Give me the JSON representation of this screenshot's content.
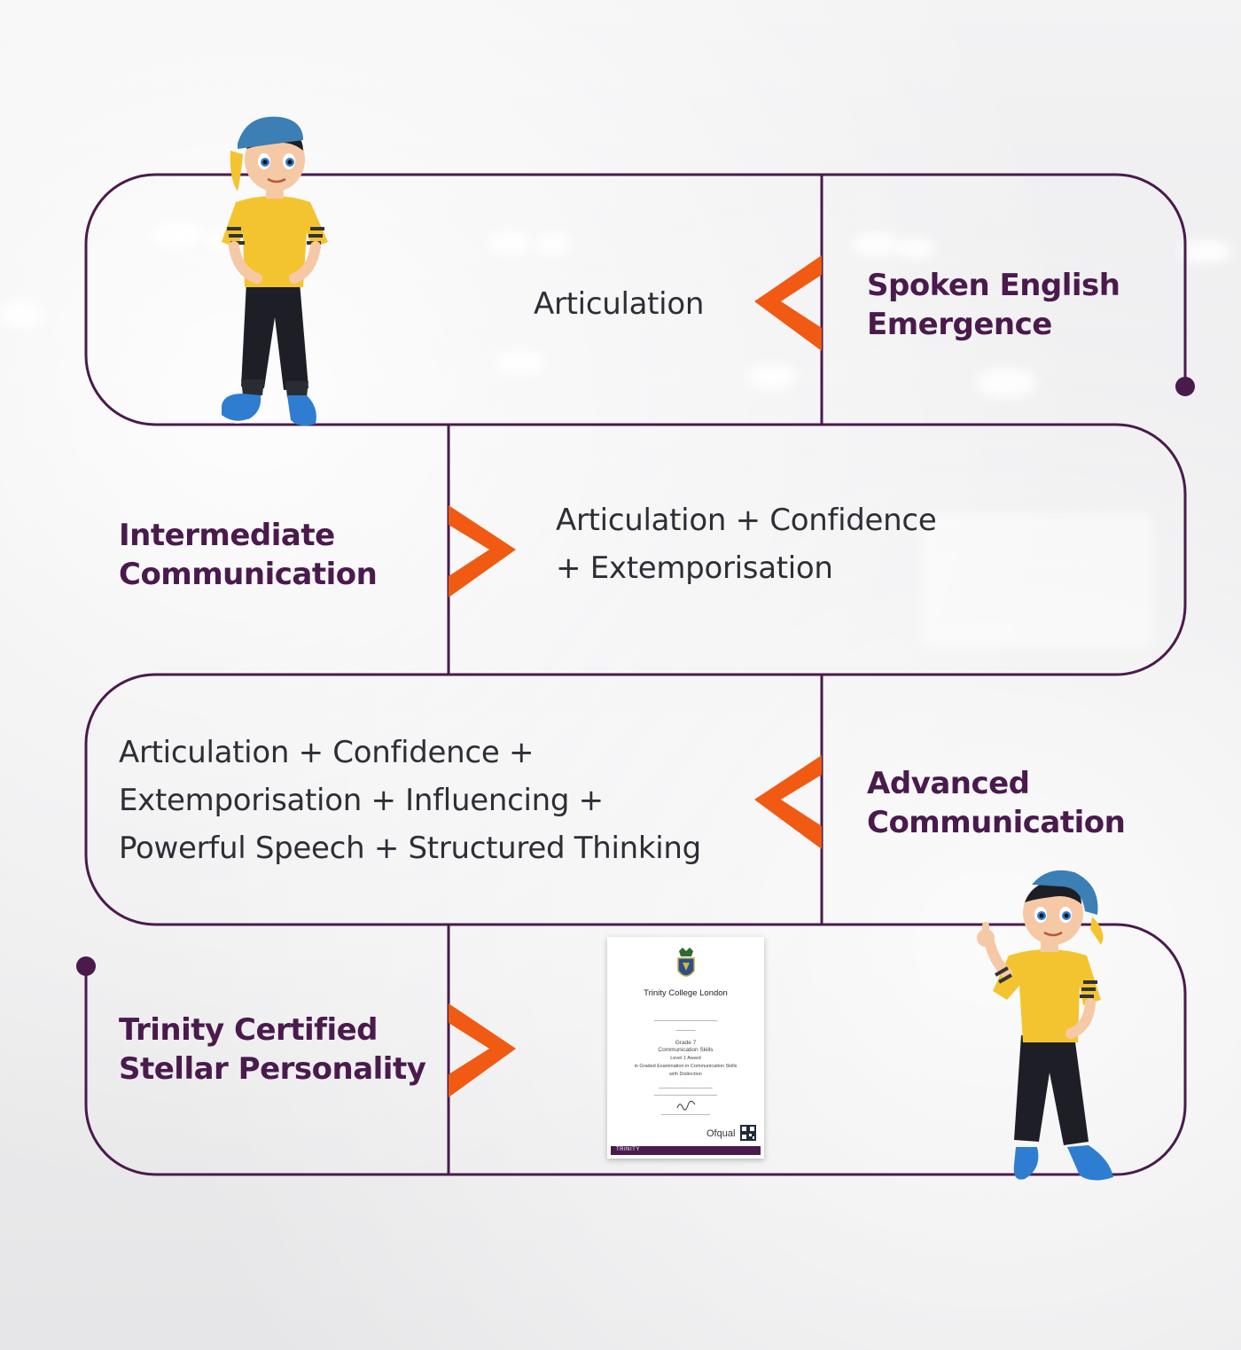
{
  "steps": [
    {
      "title_line1": "Spoken English",
      "title_line2": "Emergence",
      "skills_line1": "Articulation",
      "skills_line2": "",
      "skills_line3": ""
    },
    {
      "title_line1": "Intermediate",
      "title_line2": "Communication",
      "skills_line1": "Articulation + Confidence",
      "skills_line2": "+ Extemporisation",
      "skills_line3": ""
    },
    {
      "title_line1": "Advanced",
      "title_line2": "Communication",
      "skills_line1": "Articulation + Confidence +",
      "skills_line2": "Extemporisation + Influencing +",
      "skills_line3": "Powerful Speech + Structured Thinking"
    },
    {
      "title_line1": "Trinity Certified",
      "title_line2": "Stellar Personality"
    }
  ],
  "certificate": {
    "institution": "Trinity College London",
    "grade": "Grade 7",
    "subject": "Communication Skills",
    "level": "Level 1 Award",
    "exam": "in Graded Examination in Communication Skills",
    "result": "with Distinction",
    "regulator": "Ofqual",
    "footer": "TRINITY"
  },
  "colors": {
    "line": "#4a1a4d",
    "arrow": "#f05a12",
    "title": "#4a1a4d",
    "text": "#2f2d35"
  },
  "icons": [
    "boy-standing-illustration",
    "boy-thumbs-up-illustration",
    "chevron-arrow-icon",
    "crest-icon",
    "qr-code-icon"
  ]
}
